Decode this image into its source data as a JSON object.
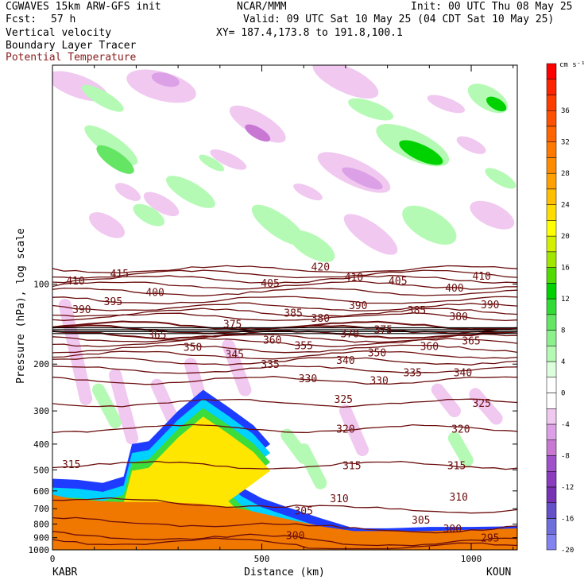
{
  "header": {
    "model": "CGWAVES 15km ARW-GFS init",
    "org": "NCAR/MMM",
    "init": "Init: 00 UTC Thu 08 May 25",
    "fcst_label": "Fcst:",
    "fcst_value": "57 h",
    "valid": "Valid: 09 UTC Sat 10 May 25 (04 CDT Sat 10 May 25)",
    "xy": "XY= 187.4,173.8 to 191.8,100.1",
    "field1": "Vertical velocity",
    "field2": "Boundary Layer Tracer",
    "field3": "Potential Temperature"
  },
  "colors": {
    "theta_contour": "#6b0d0d",
    "field3_text": "#8b1a1a",
    "terrain": "#f07800",
    "tracer_blue": "#1e3cff",
    "tracer_cyan": "#00d2ff",
    "tracer_green": "#3cdc3c",
    "tracer_yellow": "#ffe600"
  },
  "chart_data": {
    "type": "heatmap",
    "ylabel": "Pressure (hPa), log scale",
    "xlabel": "Distance (km)",
    "y_scale": "log",
    "ylim": [
      1000,
      15
    ],
    "xlim": [
      0,
      1110
    ],
    "y_ticks": [
      100,
      200,
      300,
      400,
      500,
      600,
      700,
      800,
      900,
      1000
    ],
    "x_ticks": [
      0,
      500,
      1000
    ],
    "left_station": "KABR",
    "right_station": "KOUN",
    "colorbar": {
      "unit": "cm s⁻¹",
      "labels": [
        "36",
        "32",
        "28",
        "24",
        "20",
        "16",
        "12",
        "8",
        "4",
        "0",
        "-4",
        "-8",
        "-12",
        "-16",
        "-20"
      ],
      "boxes": [
        {
          "value": 40,
          "color": "#ff0000"
        },
        {
          "value": 38,
          "color": "#ff2400"
        },
        {
          "value": 36,
          "color": "#ff3c00"
        },
        {
          "value": 34,
          "color": "#ff5000"
        },
        {
          "value": 32,
          "color": "#ff6400"
        },
        {
          "value": 30,
          "color": "#ff7800"
        },
        {
          "value": 28,
          "color": "#ff8c00"
        },
        {
          "value": 26,
          "color": "#ffa000"
        },
        {
          "value": 24,
          "color": "#ffbe00"
        },
        {
          "value": 22,
          "color": "#ffdc00"
        },
        {
          "value": 20,
          "color": "#ffff00"
        },
        {
          "value": 18,
          "color": "#d2f000"
        },
        {
          "value": 16,
          "color": "#a0e600"
        },
        {
          "value": 14,
          "color": "#50dc00"
        },
        {
          "value": 12,
          "color": "#00d200"
        },
        {
          "value": 10,
          "color": "#32dc32"
        },
        {
          "value": 8,
          "color": "#64e664"
        },
        {
          "value": 6,
          "color": "#8cf08c"
        },
        {
          "value": 4,
          "color": "#b4fab4"
        },
        {
          "value": 2,
          "color": "#dcffdc"
        },
        {
          "value": 0,
          "color": "#ffffff"
        },
        {
          "value": -2,
          "color": "#ffffff"
        },
        {
          "value": -4,
          "color": "#f0c8f0"
        },
        {
          "value": -6,
          "color": "#dca0e6"
        },
        {
          "value": -8,
          "color": "#c878d2"
        },
        {
          "value": -10,
          "color": "#a050c8"
        },
        {
          "value": -12,
          "color": "#8c3cbe"
        },
        {
          "value": -14,
          "color": "#7832b4"
        },
        {
          "value": -16,
          "color": "#6450c8"
        },
        {
          "value": -18,
          "color": "#6e6edc"
        },
        {
          "value": -20,
          "color": "#8282f0"
        }
      ]
    },
    "theta_contours": [
      {
        "theta": 420,
        "p": 88
      },
      {
        "theta": 415,
        "p": 92
      },
      {
        "theta": 410,
        "p": 96
      },
      {
        "theta": 405,
        "p": 101
      },
      {
        "theta": 400,
        "p": 107
      },
      {
        "theta": 395,
        "p": 115
      },
      {
        "theta": 390,
        "p": 122
      },
      {
        "theta": 385,
        "p": 128
      },
      {
        "theta": 380,
        "p": 133
      },
      {
        "theta": 375,
        "p": 143
      },
      {
        "theta": 370,
        "p": 148
      },
      {
        "theta": 365,
        "p": 155
      },
      {
        "theta": 360,
        "p": 160
      },
      {
        "theta": 355,
        "p": 166
      },
      {
        "theta": 350,
        "p": 175
      },
      {
        "theta": 345,
        "p": 185
      },
      {
        "theta": 340,
        "p": 195
      },
      {
        "theta": 335,
        "p": 210
      },
      {
        "theta": 330,
        "p": 230
      },
      {
        "theta": 325,
        "p": 280
      },
      {
        "theta": 320,
        "p": 350
      },
      {
        "theta": 315,
        "p": 480
      },
      {
        "theta": 310,
        "p": 650
      },
      {
        "theta": 305,
        "p": 780
      },
      {
        "theta": 300,
        "p": 880
      },
      {
        "theta": 295,
        "p": 920
      }
    ],
    "contour_labels": [
      {
        "text": "420",
        "x": 640,
        "p": 86
      },
      {
        "text": "415",
        "x": 160,
        "p": 91
      },
      {
        "text": "410",
        "x": 55,
        "p": 97
      },
      {
        "text": "410",
        "x": 720,
        "p": 94
      },
      {
        "text": "410",
        "x": 1025,
        "p": 93
      },
      {
        "text": "405",
        "x": 520,
        "p": 99
      },
      {
        "text": "405",
        "x": 825,
        "p": 97
      },
      {
        "text": "400",
        "x": 245,
        "p": 107
      },
      {
        "text": "400",
        "x": 960,
        "p": 103
      },
      {
        "text": "395",
        "x": 145,
        "p": 116
      },
      {
        "text": "390",
        "x": 70,
        "p": 124
      },
      {
        "text": "390",
        "x": 730,
        "p": 120
      },
      {
        "text": "390",
        "x": 1045,
        "p": 119
      },
      {
        "text": "385",
        "x": 575,
        "p": 128
      },
      {
        "text": "385",
        "x": 870,
        "p": 125
      },
      {
        "text": "380",
        "x": 640,
        "p": 134
      },
      {
        "text": "380",
        "x": 970,
        "p": 132
      },
      {
        "text": "375",
        "x": 430,
        "p": 141
      },
      {
        "text": "375",
        "x": 790,
        "p": 148
      },
      {
        "text": "370",
        "x": 710,
        "p": 153
      },
      {
        "text": "365",
        "x": 250,
        "p": 155
      },
      {
        "text": "365",
        "x": 1000,
        "p": 163
      },
      {
        "text": "360",
        "x": 525,
        "p": 162
      },
      {
        "text": "360",
        "x": 900,
        "p": 171
      },
      {
        "text": "355",
        "x": 600,
        "p": 170
      },
      {
        "text": "350",
        "x": 335,
        "p": 172
      },
      {
        "text": "350",
        "x": 775,
        "p": 181
      },
      {
        "text": "345",
        "x": 435,
        "p": 183
      },
      {
        "text": "340",
        "x": 700,
        "p": 193
      },
      {
        "text": "340",
        "x": 980,
        "p": 215
      },
      {
        "text": "335",
        "x": 520,
        "p": 200
      },
      {
        "text": "335",
        "x": 860,
        "p": 215
      },
      {
        "text": "330",
        "x": 610,
        "p": 226
      },
      {
        "text": "330",
        "x": 780,
        "p": 230
      },
      {
        "text": "325",
        "x": 695,
        "p": 270
      },
      {
        "text": "325",
        "x": 1025,
        "p": 280
      },
      {
        "text": "320",
        "x": 700,
        "p": 350
      },
      {
        "text": "320",
        "x": 975,
        "p": 350
      },
      {
        "text": "315",
        "x": 45,
        "p": 475
      },
      {
        "text": "315",
        "x": 715,
        "p": 480
      },
      {
        "text": "315",
        "x": 965,
        "p": 480
      },
      {
        "text": "310",
        "x": 685,
        "p": 640
      },
      {
        "text": "310",
        "x": 970,
        "p": 630
      },
      {
        "text": "305",
        "x": 600,
        "p": 710
      },
      {
        "text": "305",
        "x": 880,
        "p": 770
      },
      {
        "text": "300",
        "x": 580,
        "p": 880
      },
      {
        "text": "300",
        "x": 955,
        "p": 830
      },
      {
        "text": "295",
        "x": 1045,
        "p": 900
      }
    ],
    "terrain_p": [
      [
        0,
        620
      ],
      [
        40,
        640
      ],
      [
        80,
        650
      ],
      [
        150,
        660
      ],
      [
        250,
        660
      ],
      [
        350,
        670
      ],
      [
        450,
        700
      ],
      [
        550,
        760
      ],
      [
        650,
        820
      ],
      [
        720,
        850
      ],
      [
        800,
        850
      ],
      [
        900,
        850
      ],
      [
        1000,
        840
      ],
      [
        1110,
        830
      ]
    ],
    "tracer_top_p": [
      [
        0,
        540
      ],
      [
        60,
        545
      ],
      [
        120,
        560
      ],
      [
        170,
        530
      ],
      [
        190,
        400
      ],
      [
        230,
        390
      ],
      [
        300,
        300
      ],
      [
        360,
        250
      ],
      [
        420,
        290
      ],
      [
        480,
        340
      ],
      [
        520,
        400
      ],
      [
        460,
        470
      ],
      [
        420,
        520
      ],
      [
        450,
        580
      ],
      [
        500,
        640
      ],
      [
        560,
        690
      ],
      [
        640,
        760
      ],
      [
        720,
        830
      ],
      [
        800,
        830
      ],
      [
        900,
        820
      ],
      [
        1000,
        820
      ],
      [
        1110,
        815
      ]
    ]
  }
}
